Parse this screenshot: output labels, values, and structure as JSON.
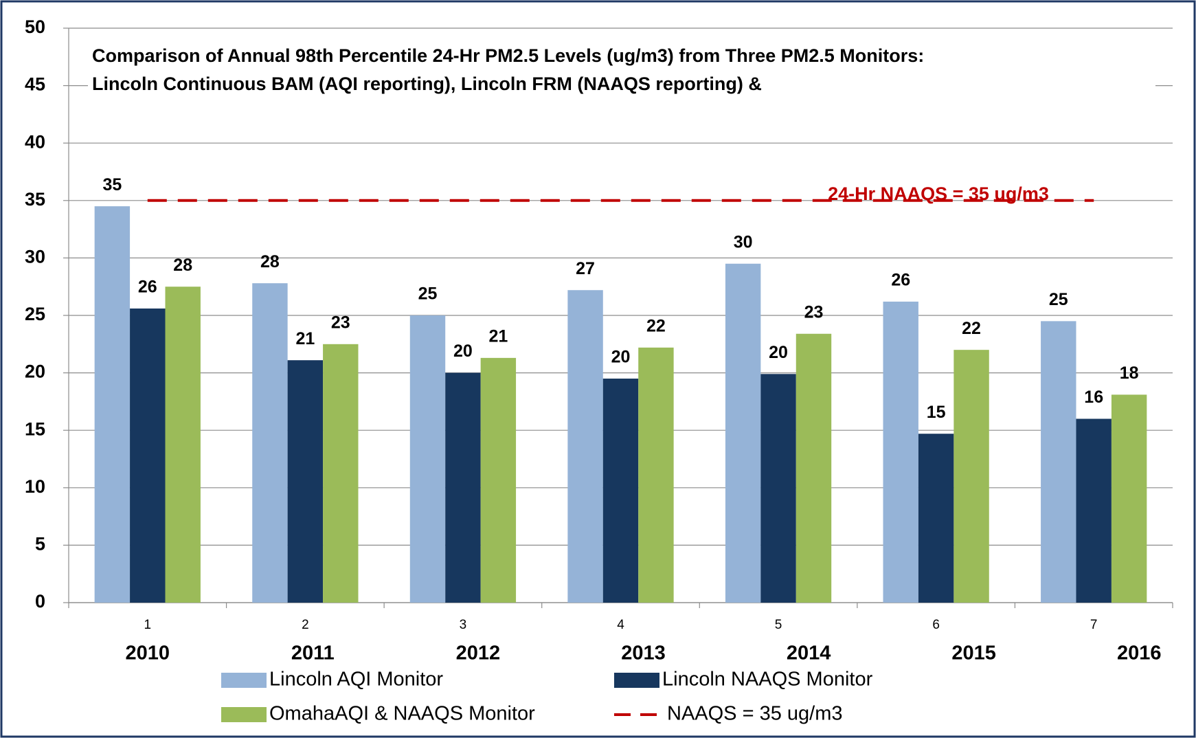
{
  "chart_data": {
    "type": "bar",
    "title": [
      "Comparison of Annual 98th Percentile 24-Hr PM2.5 Levels (ug/m3) from  Three PM2.5 Monitors:",
      "Lincoln Continuous BAM (AQI reporting), Lincoln FRM (NAAQS reporting) &"
    ],
    "categories": [
      "1",
      "2",
      "3",
      "4",
      "5",
      "6",
      "7"
    ],
    "category_labels": [
      "2010",
      "2011",
      "2012",
      "2013",
      "2014",
      "2015",
      "2016"
    ],
    "series": [
      {
        "name": "Lincoln AQI Monitor",
        "color": "#95b3d7",
        "values": [
          34.5,
          27.8,
          25.0,
          27.2,
          29.5,
          26.2,
          24.5
        ],
        "value_labels": [
          "35",
          "28",
          "25",
          "27",
          "30",
          "26",
          "25"
        ]
      },
      {
        "name": "Lincoln NAAQS Monitor",
        "color": "#17375e",
        "values": [
          25.6,
          21.1,
          20.0,
          19.5,
          19.9,
          14.7,
          16.0
        ],
        "value_labels": [
          "26",
          "21",
          "20",
          "20",
          "20",
          "15",
          "16"
        ]
      },
      {
        "name": "OmahaAQI & NAAQS Monitor",
        "color": "#9bbb59",
        "values": [
          27.5,
          22.5,
          21.3,
          22.2,
          23.4,
          22.0,
          18.1
        ],
        "value_labels": [
          "28",
          "23",
          "21",
          "22",
          "23",
          "22",
          "18"
        ]
      },
      {
        "name": "NAAQS = 35 ug/m3",
        "color": "#c00000",
        "type": "line",
        "dashed": true,
        "values": [
          35,
          35,
          35,
          35,
          35,
          35,
          35
        ]
      }
    ],
    "annotation": "24-Hr NAAQS = 35 ug/m3",
    "ylim": [
      0,
      50
    ],
    "yticks": [
      0,
      5,
      10,
      15,
      20,
      25,
      30,
      35,
      40,
      45,
      50
    ],
    "grid": true,
    "legend": "bottom"
  }
}
